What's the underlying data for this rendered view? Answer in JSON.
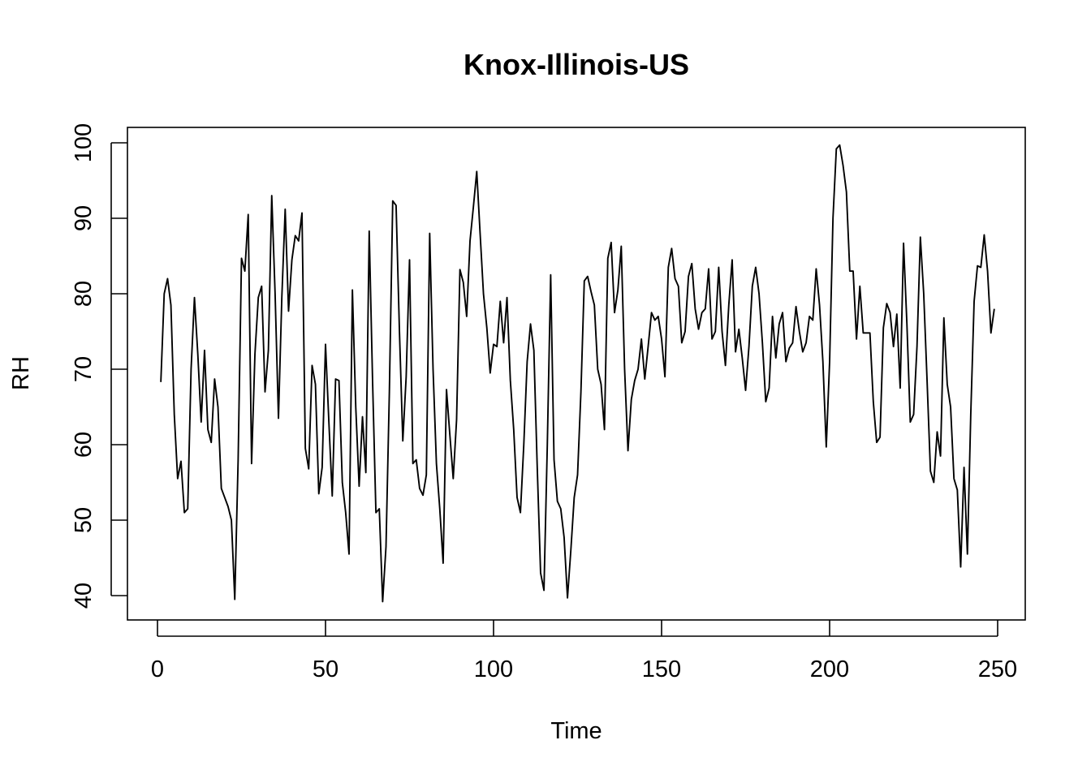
{
  "chart_data": {
    "type": "line",
    "title": "Knox-Illinois-US",
    "xlabel": "Time",
    "ylabel": "RH",
    "xlim": [
      0,
      250
    ],
    "ylim": [
      40,
      100
    ],
    "x_ticks": [
      0,
      50,
      100,
      150,
      200,
      250
    ],
    "y_ticks": [
      40,
      50,
      60,
      70,
      80,
      90,
      100
    ],
    "grid": false,
    "x_start": 1,
    "series": [
      {
        "values": [
          68.3,
          80.0,
          82.0,
          78.5,
          64.0,
          55.5,
          57.8,
          51.0,
          51.5,
          70.0,
          79.5,
          72.0,
          63.0,
          72.5,
          62.0,
          60.3,
          68.7,
          65.0,
          54.2,
          53.0,
          51.8,
          50.0,
          39.5,
          58.0,
          84.7,
          83.0,
          90.5,
          57.5,
          72.0,
          79.5,
          81.0,
          67.0,
          72.5,
          93.0,
          80.0,
          63.5,
          79.5,
          91.2,
          77.7,
          84.5,
          87.7,
          87.0,
          90.7,
          59.5,
          56.8,
          70.5,
          68.0,
          53.5,
          57.0,
          73.3,
          63.0,
          53.2,
          68.7,
          68.5,
          55.0,
          51.0,
          45.5,
          80.5,
          65.0,
          54.5,
          63.7,
          56.3,
          88.3,
          68.5,
          51.0,
          51.5,
          39.2,
          46.5,
          67.0,
          92.3,
          91.7,
          75.0,
          60.5,
          69.0,
          84.5,
          57.5,
          58.0,
          54.2,
          53.3,
          56.0,
          88.0,
          70.0,
          57.5,
          51.5,
          44.3,
          67.3,
          61.3,
          55.5,
          63.3,
          83.2,
          81.5,
          77.0,
          87.0,
          91.5,
          96.2,
          88.0,
          80.0,
          75.5,
          69.5,
          73.3,
          73.0,
          79.0,
          73.5,
          79.5,
          68.5,
          62.0,
          53.0,
          51.0,
          60.0,
          71.0,
          76.0,
          72.5,
          57.0,
          43.0,
          40.7,
          60.0,
          82.5,
          58.0,
          52.5,
          51.5,
          47.7,
          39.7,
          46.0,
          53.0,
          56.0,
          67.0,
          81.7,
          82.3,
          80.3,
          78.5,
          70.0,
          68.0,
          62.0,
          84.7,
          86.8,
          77.5,
          80.5,
          86.3,
          70.0,
          59.2,
          66.0,
          68.5,
          70.0,
          74.0,
          68.7,
          73.0,
          77.5,
          76.5,
          77.0,
          74.0,
          69.0,
          83.5,
          86.0,
          82.0,
          81.0,
          73.5,
          75.0,
          82.3,
          84.0,
          78.0,
          75.3,
          77.5,
          78.0,
          83.3,
          74.0,
          75.0,
          83.5,
          75.0,
          70.5,
          78.5,
          84.5,
          72.3,
          75.3,
          71.5,
          67.2,
          73.0,
          81.0,
          83.5,
          80.0,
          73.5,
          65.7,
          67.5,
          77.0,
          71.5,
          76.0,
          77.5,
          71.0,
          72.8,
          73.5,
          78.3,
          75.0,
          72.3,
          73.5,
          77.0,
          76.5,
          83.3,
          78.5,
          71.0,
          59.7,
          71.0,
          90.0,
          99.2,
          99.7,
          97.0,
          93.5,
          83.0,
          83.0,
          74.0,
          81.0,
          74.8,
          74.8,
          74.8,
          65.7,
          60.3,
          61.0,
          75.5,
          78.7,
          77.5,
          73.0,
          77.3,
          67.5,
          86.7,
          76.0,
          63.0,
          64.0,
          73.0,
          87.5,
          80.0,
          68.5,
          56.5,
          55.0,
          61.7,
          58.5,
          76.8,
          68.0,
          65.0,
          55.5,
          54.0,
          43.8,
          57.0,
          45.5,
          64.0,
          79.0,
          83.7,
          83.5,
          87.8,
          83.0,
          74.8,
          78.0
        ]
      }
    ]
  }
}
